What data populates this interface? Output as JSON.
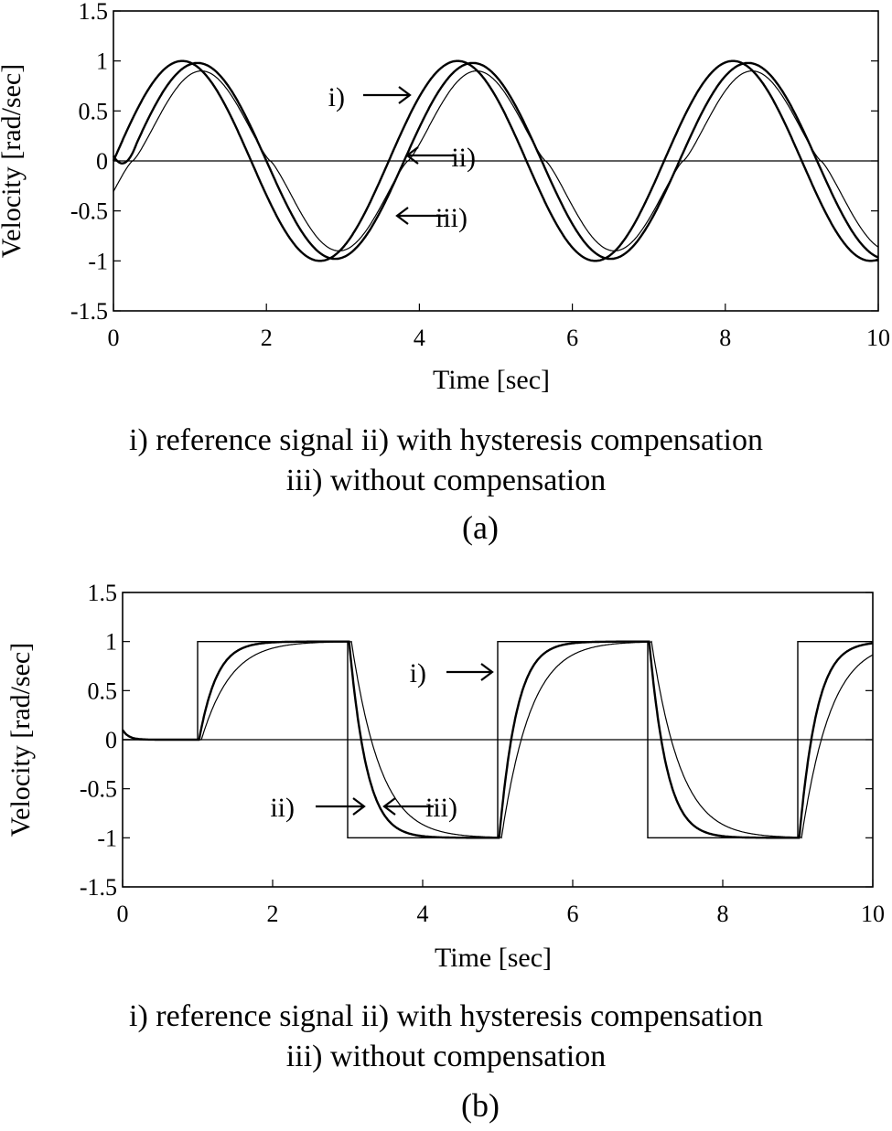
{
  "chart_data": [
    {
      "id": "a",
      "type": "line",
      "xlabel": "Time [sec]",
      "ylabel": "Velocity [rad/sec]",
      "xlim": [
        0,
        10
      ],
      "ylim": [
        -1.5,
        1.5
      ],
      "xticks": [
        0,
        2,
        4,
        6,
        8,
        10
      ],
      "yticks": [
        1.5,
        1,
        0.5,
        0,
        -0.5,
        -1,
        -1.5
      ],
      "xtick_labels": [
        "0",
        "2",
        "4",
        "6",
        "8",
        "10"
      ],
      "ytick_labels": [
        "1.5",
        "1",
        "0.5",
        "0",
        "-0.5",
        "-1",
        "-1.5"
      ],
      "zero_line": true,
      "series": [
        {
          "name": "i) reference signal",
          "kind": "sine",
          "amplitude": 1,
          "period": 3.6,
          "phase_delay": 0.0
        },
        {
          "name": "ii) with hysteresis compensation",
          "kind": "sine",
          "amplitude": 0.98,
          "period": 3.6,
          "phase_delay": 0.2
        },
        {
          "name": "iii) without compensation",
          "kind": "sine-hysteresis",
          "amplitude": 0.9,
          "period": 3.6,
          "phase_delay": 0.25
        }
      ],
      "annotations": [
        {
          "label": "i)",
          "arrow": "right"
        },
        {
          "label": "ii)",
          "arrow": "left"
        },
        {
          "label": "iii)",
          "arrow": "left"
        }
      ],
      "caption_line1": "i) reference signal  ii) with hysteresis compensation",
      "caption_line2": "iii) without compensation",
      "panel_label": "(a)"
    },
    {
      "id": "b",
      "type": "line",
      "xlabel": "Time [sec]",
      "ylabel": "Velocity [rad/sec]",
      "xlim": [
        0,
        10
      ],
      "ylim": [
        -1.5,
        1.5
      ],
      "xticks": [
        0,
        2,
        4,
        6,
        8,
        10
      ],
      "yticks": [
        1.5,
        1,
        0.5,
        0,
        -0.5,
        -1,
        -1.5
      ],
      "xtick_labels": [
        "0",
        "2",
        "4",
        "6",
        "8",
        "10"
      ],
      "ytick_labels": [
        "1.5",
        "1",
        "0.5",
        "0",
        "-0.5",
        "-1",
        "-1.5"
      ],
      "zero_line": true,
      "series": [
        {
          "name": "i) reference signal",
          "kind": "square",
          "x": [
            0,
            1,
            1,
            3,
            3,
            5,
            5,
            7,
            7,
            9,
            9,
            10
          ],
          "y": [
            0,
            0,
            1,
            1,
            -1,
            -1,
            1,
            1,
            -1,
            -1,
            1,
            1
          ]
        },
        {
          "name": "ii) with hysteresis compensation",
          "kind": "step-response",
          "delay": 0.02,
          "tau": 0.17
        },
        {
          "name": "iii) without compensation",
          "kind": "step-response",
          "delay": 0.05,
          "tau": 0.28
        }
      ],
      "annotations": [
        {
          "label": "i)",
          "arrow": "right"
        },
        {
          "label": "ii)",
          "arrow": "right"
        },
        {
          "label": "iii)",
          "arrow": "left"
        }
      ],
      "caption_line1": "i) reference signal  ii) with hysteresis compensation",
      "caption_line2": "iii) without compensation",
      "panel_label": "(b)"
    }
  ]
}
